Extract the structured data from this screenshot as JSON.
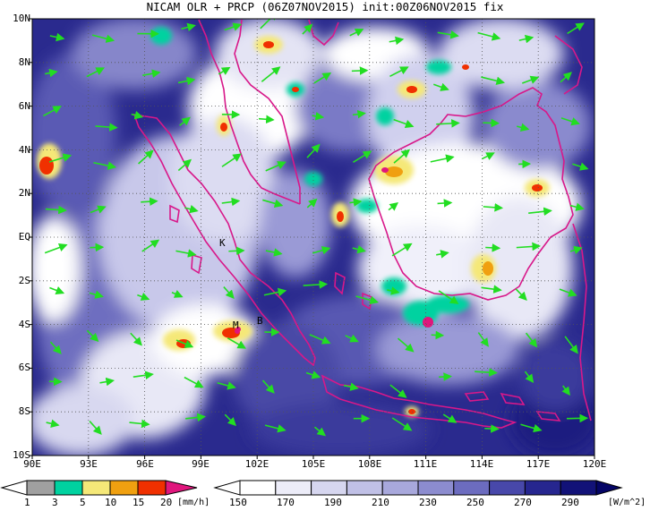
{
  "title": "NICAM OLR + PRCP (06Z07NOV2015) init:00Z06NOV2015 fix",
  "axes": {
    "y_labels": [
      "10N",
      "8N",
      "6N",
      "4N",
      "2N",
      "EQ",
      "2S",
      "4S",
      "6S",
      "8S",
      "10S"
    ],
    "x_labels": [
      "90E",
      "93E",
      "96E",
      "99E",
      "102E",
      "105E",
      "108E",
      "111E",
      "114E",
      "117E",
      "120E"
    ]
  },
  "station_markers": [
    "K",
    "M",
    "B"
  ],
  "precip_colorbar": {
    "labels": [
      "1",
      "3",
      "5",
      "10",
      "15",
      "20"
    ],
    "unit": "[mm/h]",
    "colors": [
      "#a0a0a0",
      "#00d2a0",
      "#f5e878",
      "#f0a010",
      "#f03000",
      "#e0167d"
    ]
  },
  "olr_colorbar": {
    "labels": [
      "150",
      "170",
      "190",
      "210",
      "230",
      "250",
      "270",
      "290"
    ],
    "unit": "[W/m^2]",
    "colors": [
      "#ffffff",
      "#ececf8",
      "#d6d6ef",
      "#c0c0e6",
      "#a8a8dc",
      "#8c8ccf",
      "#6c6cbf",
      "#4848aa",
      "#26268f",
      "#121278",
      "#050566"
    ]
  },
  "colors": {
    "coastline": "#d8188a",
    "wind_vector": "#22dd22",
    "ocean_base": "#222288"
  }
}
